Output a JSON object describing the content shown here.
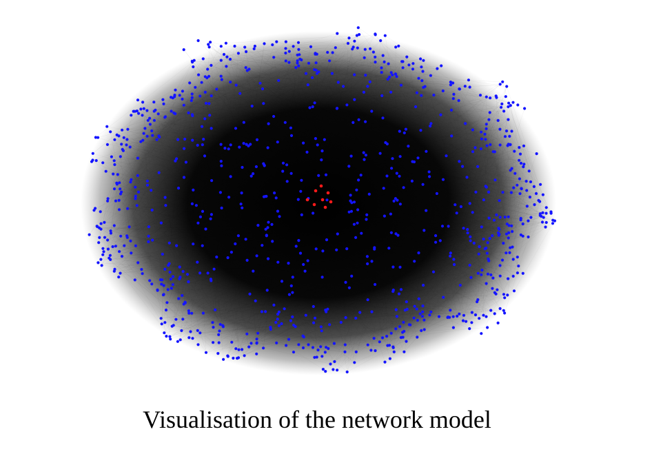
{
  "caption": "Visualisation of the network model",
  "network": {
    "node_groups": [
      {
        "role": "peripheral",
        "color": "#1414ff",
        "approx_count": 1000
      },
      {
        "role": "core",
        "color": "#ff1a1a",
        "approx_count": 8
      }
    ],
    "edge_color": "#000000",
    "background": "#ffffff"
  }
}
